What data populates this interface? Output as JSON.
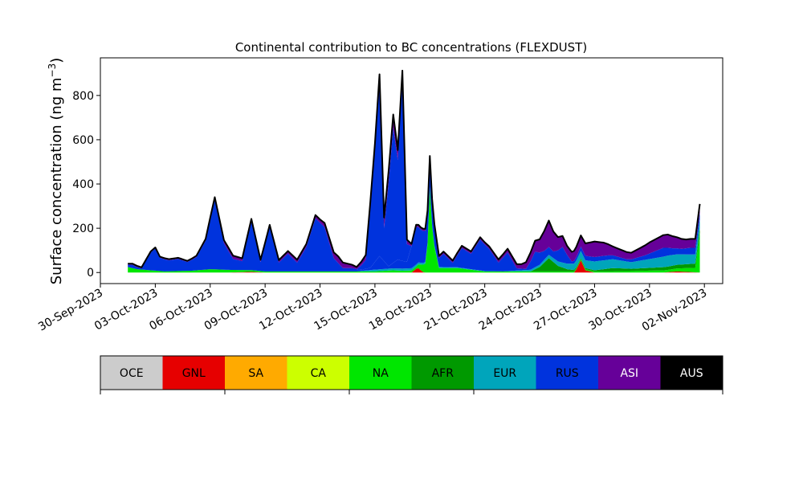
{
  "chart_data": {
    "type": "area",
    "stacked": true,
    "title": "Continental contribution to BC concentrations (FLEXDUST)",
    "ylabel": "Surface concentration (ng m⁻³)",
    "ylabel_main": "Surface concentration (ng m",
    "ylabel_sup": "−3",
    "ylabel_close": ")",
    "xlabel": "",
    "xlim": [
      "2023-09-30",
      "2023-11-03"
    ],
    "ylim": [
      -50,
      970
    ],
    "y_ticks": [
      0,
      200,
      400,
      600,
      800
    ],
    "x_ticks": [
      {
        "date": "2023-09-30",
        "label": "30-Sep-2023"
      },
      {
        "date": "2023-10-03",
        "label": "03-Oct-2023"
      },
      {
        "date": "2023-10-06",
        "label": "06-Oct-2023"
      },
      {
        "date": "2023-10-09",
        "label": "09-Oct-2023"
      },
      {
        "date": "2023-10-12",
        "label": "12-Oct-2023"
      },
      {
        "date": "2023-10-15",
        "label": "15-Oct-2023"
      },
      {
        "date": "2023-10-18",
        "label": "18-Oct-2023"
      },
      {
        "date": "2023-10-21",
        "label": "21-Oct-2023"
      },
      {
        "date": "2023-10-24",
        "label": "24-Oct-2023"
      },
      {
        "date": "2023-10-27",
        "label": "27-Oct-2023"
      },
      {
        "date": "2023-10-30",
        "label": "30-Oct-2023"
      },
      {
        "date": "2023-11-02",
        "label": "02-Nov-2023"
      }
    ],
    "legend_placement": "bottom colorbar",
    "legend": [
      {
        "name": "OCE",
        "color": "#cccccc",
        "text_color": "#000000"
      },
      {
        "name": "GNL",
        "color": "#e60000",
        "text_color": "#000000"
      },
      {
        "name": "SA",
        "color": "#ffaa00",
        "text_color": "#000000"
      },
      {
        "name": "CA",
        "color": "#ccff00",
        "text_color": "#000000"
      },
      {
        "name": "NA",
        "color": "#00e600",
        "text_color": "#000000"
      },
      {
        "name": "AFR",
        "color": "#009900",
        "text_color": "#000000"
      },
      {
        "name": "EUR",
        "color": "#00a5bb",
        "text_color": "#000000"
      },
      {
        "name": "RUS",
        "color": "#0033dd",
        "text_color": "#000000"
      },
      {
        "name": "ASI",
        "color": "#660099",
        "text_color": "#ffffff"
      },
      {
        "name": "AUS",
        "color": "#000000",
        "text_color": "#ffffff"
      }
    ],
    "total_line_color": "#000000",
    "series": [
      {
        "name": "GNL",
        "color": "#e60000",
        "points": [
          [
            "2023-10-01T12:00",
            0
          ],
          [
            "2023-10-07T00:00",
            0
          ],
          [
            "2023-10-08T06:00",
            3
          ],
          [
            "2023-10-09T00:00",
            0
          ],
          [
            "2023-10-17T00:00",
            0
          ],
          [
            "2023-10-17T08:00",
            22
          ],
          [
            "2023-10-17T16:00",
            0
          ],
          [
            "2023-10-25T22:00",
            0
          ],
          [
            "2023-10-26T06:00",
            55
          ],
          [
            "2023-10-26T12:00",
            10
          ],
          [
            "2023-10-27T00:00",
            0
          ],
          [
            "2023-10-30T18:00",
            0
          ],
          [
            "2023-10-31T12:00",
            5
          ],
          [
            "2023-11-01T18:00",
            0
          ]
        ]
      },
      {
        "name": "NA",
        "color": "#00e600",
        "points": [
          [
            "2023-10-01T12:00",
            25
          ],
          [
            "2023-10-02T00:00",
            15
          ],
          [
            "2023-10-02T18:00",
            10
          ],
          [
            "2023-10-03T12:00",
            5
          ],
          [
            "2023-10-05T00:00",
            8
          ],
          [
            "2023-10-06T00:00",
            15
          ],
          [
            "2023-10-07T00:00",
            12
          ],
          [
            "2023-10-09T00:00",
            5
          ],
          [
            "2023-10-12T00:00",
            5
          ],
          [
            "2023-10-15T00:00",
            5
          ],
          [
            "2023-10-16T00:00",
            10
          ],
          [
            "2023-10-16T12:00",
            8
          ],
          [
            "2023-10-17T06:00",
            10
          ],
          [
            "2023-10-17T20:00",
            45
          ],
          [
            "2023-10-18T00:00",
            380
          ],
          [
            "2023-10-18T04:00",
            150
          ],
          [
            "2023-10-18T12:00",
            20
          ],
          [
            "2023-10-19T12:00",
            20
          ],
          [
            "2023-10-21T00:00",
            5
          ],
          [
            "2023-10-24T00:00",
            5
          ],
          [
            "2023-10-28T00:00",
            5
          ],
          [
            "2023-10-31T00:00",
            10
          ],
          [
            "2023-11-01T12:00",
            20
          ],
          [
            "2023-11-01T18:00",
            180
          ]
        ]
      },
      {
        "name": "AFR",
        "color": "#009900",
        "points": [
          [
            "2023-10-01T12:00",
            0
          ],
          [
            "2023-10-23T12:00",
            0
          ],
          [
            "2023-10-24T00:00",
            20
          ],
          [
            "2023-10-24T12:00",
            60
          ],
          [
            "2023-10-25T00:00",
            25
          ],
          [
            "2023-10-25T12:00",
            10
          ],
          [
            "2023-10-26T00:00",
            5
          ],
          [
            "2023-10-27T00:00",
            5
          ],
          [
            "2023-10-28T00:00",
            15
          ],
          [
            "2023-10-29T00:00",
            10
          ],
          [
            "2023-10-31T00:00",
            15
          ],
          [
            "2023-11-01T18:00",
            20
          ]
        ]
      },
      {
        "name": "EUR",
        "color": "#00a5bb",
        "points": [
          [
            "2023-10-01T12:00",
            0
          ],
          [
            "2023-10-14T00:00",
            0
          ],
          [
            "2023-10-15T00:00",
            8
          ],
          [
            "2023-10-17T00:00",
            10
          ],
          [
            "2023-10-18T12:00",
            5
          ],
          [
            "2023-10-22T00:00",
            0
          ],
          [
            "2023-10-24T00:00",
            10
          ],
          [
            "2023-10-25T00:00",
            20
          ],
          [
            "2023-10-26T00:00",
            30
          ],
          [
            "2023-10-27T00:00",
            40
          ],
          [
            "2023-10-28T00:00",
            40
          ],
          [
            "2023-10-29T00:00",
            30
          ],
          [
            "2023-10-30T00:00",
            40
          ],
          [
            "2023-10-31T00:00",
            50
          ],
          [
            "2023-11-01T18:00",
            40
          ]
        ]
      },
      {
        "name": "RUS",
        "color": "#0033dd",
        "points": [
          [
            "2023-10-01T12:00",
            10
          ],
          [
            "2023-10-01T18:00",
            15
          ],
          [
            "2023-10-02T06:00",
            5
          ],
          [
            "2023-10-02T18:00",
            80
          ],
          [
            "2023-10-03T00:00",
            100
          ],
          [
            "2023-10-03T06:00",
            60
          ],
          [
            "2023-10-03T18:00",
            50
          ],
          [
            "2023-10-04T06:00",
            55
          ],
          [
            "2023-10-04T18:00",
            40
          ],
          [
            "2023-10-05T06:00",
            60
          ],
          [
            "2023-10-05T18:00",
            130
          ],
          [
            "2023-10-06T06:00",
            315
          ],
          [
            "2023-10-06T18:00",
            120
          ],
          [
            "2023-10-07T06:00",
            50
          ],
          [
            "2023-10-07T18:00",
            40
          ],
          [
            "2023-10-08T06:00",
            220
          ],
          [
            "2023-10-08T18:00",
            40
          ],
          [
            "2023-10-09T06:00",
            200
          ],
          [
            "2023-10-09T18:00",
            40
          ],
          [
            "2023-10-10T06:00",
            80
          ],
          [
            "2023-10-10T18:00",
            40
          ],
          [
            "2023-10-11T06:00",
            110
          ],
          [
            "2023-10-11T18:00",
            240
          ],
          [
            "2023-10-12T06:00",
            200
          ],
          [
            "2023-10-12T18:00",
            60
          ],
          [
            "2023-10-13T06:00",
            15
          ],
          [
            "2023-10-13T18:00",
            15
          ],
          [
            "2023-10-14T06:00",
            5
          ],
          [
            "2023-10-14T18:00",
            10
          ],
          [
            "2023-10-15T06:00",
            60
          ],
          [
            "2023-10-15T18:00",
            10
          ],
          [
            "2023-10-16T06:00",
            40
          ],
          [
            "2023-10-16T18:00",
            30
          ],
          [
            "2023-10-17T06:00",
            170
          ],
          [
            "2023-10-17T12:00",
            150
          ],
          [
            "2023-10-18T00:00",
            130
          ],
          [
            "2023-10-18T12:00",
            40
          ],
          [
            "2023-10-18T18:00",
            60
          ],
          [
            "2023-10-19T06:00",
            20
          ],
          [
            "2023-10-19T18:00",
            90
          ],
          [
            "2023-10-20T06:00",
            70
          ],
          [
            "2023-10-20T18:00",
            140
          ],
          [
            "2023-10-21T06:00",
            100
          ],
          [
            "2023-10-21T18:00",
            40
          ],
          [
            "2023-10-22T06:00",
            85
          ],
          [
            "2023-10-22T18:00",
            10
          ],
          [
            "2023-10-23T06:00",
            5
          ],
          [
            "2023-10-23T18:00",
            70
          ],
          [
            "2023-10-24T06:00",
            40
          ],
          [
            "2023-10-24T18:00",
            30
          ],
          [
            "2023-10-25T06:00",
            70
          ],
          [
            "2023-10-25T18:00",
            10
          ],
          [
            "2023-10-26T06:00",
            20
          ],
          [
            "2023-10-26T18:00",
            20
          ],
          [
            "2023-10-27T06:00",
            20
          ],
          [
            "2023-10-27T18:00",
            20
          ],
          [
            "2023-10-28T06:00",
            15
          ],
          [
            "2023-10-28T18:00",
            10
          ],
          [
            "2023-10-29T06:00",
            15
          ],
          [
            "2023-10-29T18:00",
            20
          ],
          [
            "2023-10-30T06:00",
            30
          ],
          [
            "2023-10-30T18:00",
            40
          ],
          [
            "2023-10-31T06:00",
            30
          ],
          [
            "2023-10-31T18:00",
            25
          ],
          [
            "2023-11-01T06:00",
            30
          ],
          [
            "2023-11-01T18:00",
            30
          ]
        ]
      },
      {
        "name": "RUS",
        "color": "#0033dd",
        "points": [
          [
            "2023-10-14T00:00",
            0
          ],
          [
            "2023-10-14T12:00",
            40
          ],
          [
            "2023-10-15T00:00",
            500
          ],
          [
            "2023-10-15T06:00",
            780
          ],
          [
            "2023-10-15T12:00",
            150
          ],
          [
            "2023-10-15T18:00",
            380
          ],
          [
            "2023-10-16T00:00",
            610
          ],
          [
            "2023-10-16T06:00",
            450
          ],
          [
            "2023-10-16T12:00",
            830
          ],
          [
            "2023-10-16T18:00",
            80
          ],
          [
            "2023-10-17T00:00",
            0
          ]
        ]
      },
      {
        "name": "ASI",
        "color": "#660099",
        "points": [
          [
            "2023-10-01T12:00",
            5
          ],
          [
            "2023-10-05T00:00",
            5
          ],
          [
            "2023-10-07T00:00",
            15
          ],
          [
            "2023-10-09T00:00",
            10
          ],
          [
            "2023-10-12T00:00",
            15
          ],
          [
            "2023-10-13T00:00",
            30
          ],
          [
            "2023-10-14T00:00",
            10
          ],
          [
            "2023-10-16T00:00",
            60
          ],
          [
            "2023-10-16T12:00",
            30
          ],
          [
            "2023-10-17T00:00",
            10
          ],
          [
            "2023-10-21T00:00",
            10
          ],
          [
            "2023-10-23T00:00",
            20
          ],
          [
            "2023-10-24T00:00",
            60
          ],
          [
            "2023-10-24T12:00",
            120
          ],
          [
            "2023-10-25T00:00",
            60
          ],
          [
            "2023-10-25T12:00",
            40
          ],
          [
            "2023-10-26T06:00",
            50
          ],
          [
            "2023-10-27T00:00",
            70
          ],
          [
            "2023-10-27T12:00",
            60
          ],
          [
            "2023-10-28T00:00",
            40
          ],
          [
            "2023-10-29T00:00",
            30
          ],
          [
            "2023-10-30T00:00",
            50
          ],
          [
            "2023-10-31T00:00",
            60
          ],
          [
            "2023-11-01T00:00",
            40
          ],
          [
            "2023-11-01T18:00",
            40
          ]
        ]
      }
    ]
  }
}
